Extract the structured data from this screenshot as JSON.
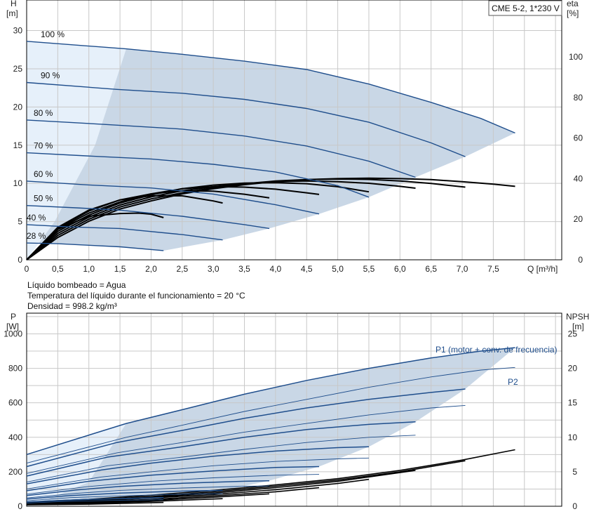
{
  "model_label": "CME 5-2, 1*230 V",
  "info_lines": [
    "Líquido bombeado = Agua",
    "Temperatura del líquido durante el funcionamiento = 20 °C",
    "Densidad = 998.2 kg/m³"
  ],
  "colors": {
    "pump_curve": "#1f4e8c",
    "efficiency_curve": "#000000",
    "operating_area": "#c9d7e6",
    "low_flow_area": "#e6f0fa",
    "grid": "#c8c8c8",
    "axis": "#000000"
  },
  "chart_data": [
    {
      "type": "line",
      "title": "",
      "x_unit": "Q [m³/h]",
      "y_left_label": "H",
      "y_left_unit": "[m]",
      "y_right_label": "eta",
      "y_right_unit": "[%]",
      "x_ticks": [
        "0",
        "0,5",
        "1,0",
        "1,5",
        "2,0",
        "2,5",
        "3,0",
        "3,5",
        "4,0",
        "4,5",
        "5,0",
        "5,5",
        "6,0",
        "6,5",
        "7,0",
        "7,5"
      ],
      "y_left_ticks": [
        "0",
        "5",
        "10",
        "15",
        "20",
        "25",
        "30"
      ],
      "y_right_ticks": [
        "0",
        "20",
        "40",
        "60",
        "80",
        "100"
      ],
      "xlim": [
        0,
        8.6
      ],
      "ylim_left": [
        0,
        34
      ],
      "ylim_right": [
        0,
        128
      ],
      "grid": true,
      "head_curves": [
        {
          "label": "100 %",
          "x": [
            0,
            1.6,
            2.5,
            3.5,
            4.5,
            5.5,
            6.5,
            7.3,
            7.85
          ],
          "y": [
            28.6,
            27.6,
            26.9,
            26.0,
            24.9,
            23.0,
            20.6,
            18.5,
            16.6
          ]
        },
        {
          "label": "90 %",
          "x": [
            0,
            1.45,
            2.5,
            3.5,
            4.5,
            5.5,
            6.5,
            7.05
          ],
          "y": [
            23.2,
            22.3,
            21.8,
            21.0,
            19.8,
            18.0,
            15.3,
            13.5
          ]
        },
        {
          "label": "80 %",
          "x": [
            0,
            1.3,
            2.5,
            3.5,
            4.5,
            5.5,
            6.25
          ],
          "y": [
            18.3,
            17.7,
            17.1,
            16.2,
            14.9,
            12.9,
            10.8
          ]
        },
        {
          "label": "70 %",
          "x": [
            0,
            1.2,
            2.0,
            3.0,
            4.0,
            5.0,
            5.5
          ],
          "y": [
            14.0,
            13.5,
            13.2,
            12.5,
            11.5,
            9.7,
            8.2
          ]
        },
        {
          "label": "60 %",
          "x": [
            0,
            1.0,
            2.0,
            3.0,
            4.0,
            4.7
          ],
          "y": [
            10.3,
            9.8,
            9.4,
            8.6,
            7.2,
            6.0
          ]
        },
        {
          "label": "50 %",
          "x": [
            0,
            0.8,
            1.5,
            2.5,
            3.5,
            3.9
          ],
          "y": [
            7.1,
            6.8,
            6.5,
            5.7,
            4.6,
            4.1
          ]
        },
        {
          "label": "40 %",
          "x": [
            0,
            0.7,
            1.5,
            2.5,
            3.15
          ],
          "y": [
            4.6,
            4.3,
            4.1,
            3.3,
            2.6
          ]
        },
        {
          "label": "28 %",
          "x": [
            0,
            0.5,
            1.0,
            1.5,
            2.2
          ],
          "y": [
            2.2,
            2.1,
            1.9,
            1.7,
            1.2
          ]
        }
      ],
      "efficiency_curves": [
        {
          "x": [
            0,
            0.5,
            1.0,
            1.5,
            2.0,
            2.5,
            3.0,
            3.5,
            4.0,
            4.5,
            5.0,
            5.5,
            6.0,
            6.5,
            7.0,
            7.5,
            7.85
          ],
          "y": [
            0,
            11,
            19,
            25,
            29,
            32.5,
            35,
            37,
            38.5,
            39.5,
            40,
            40.2,
            40,
            39.5,
            38.5,
            37.3,
            36.2
          ]
        },
        {
          "x": [
            0,
            0.5,
            1.0,
            1.5,
            2.0,
            2.5,
            3.0,
            3.5,
            4.0,
            4.5,
            5.0,
            5.5,
            6.0,
            6.5,
            7.05
          ],
          "y": [
            0,
            12,
            20,
            26,
            30,
            33,
            35.5,
            37.5,
            38.8,
            39.5,
            39.8,
            39.6,
            38.8,
            37.6,
            35.8
          ]
        },
        {
          "x": [
            0,
            0.5,
            1.0,
            1.5,
            2.0,
            2.5,
            3.0,
            3.5,
            4.0,
            4.5,
            5.0,
            5.5,
            6.0,
            6.25
          ],
          "y": [
            0,
            13,
            21,
            27,
            31,
            34,
            36,
            37.5,
            38.5,
            38.8,
            38.5,
            37.7,
            36.2,
            35.3
          ]
        },
        {
          "x": [
            0,
            0.5,
            1.0,
            1.5,
            2.0,
            2.5,
            3.0,
            3.5,
            4.0,
            4.5,
            5.0,
            5.5
          ],
          "y": [
            0,
            14,
            22,
            28,
            32,
            35,
            36.8,
            37.8,
            38,
            37.5,
            36,
            33.5
          ]
        },
        {
          "x": [
            0,
            0.5,
            1.0,
            1.5,
            2.0,
            2.5,
            3.0,
            3.5,
            4.0,
            4.5,
            4.7
          ],
          "y": [
            0,
            15,
            23,
            28.5,
            32.5,
            35,
            36,
            35.8,
            34.8,
            33,
            32.2
          ]
        },
        {
          "x": [
            0,
            0.5,
            1.0,
            1.5,
            2.0,
            2.5,
            3.0,
            3.5,
            3.9
          ],
          "y": [
            0,
            15.5,
            24,
            29.5,
            32.5,
            34,
            33.8,
            32.3,
            30.5
          ]
        },
        {
          "x": [
            0,
            0.5,
            1.0,
            1.5,
            2.0,
            2.5,
            3.0,
            3.15
          ],
          "y": [
            0,
            16,
            24.5,
            29.5,
            31.5,
            31.5,
            29,
            28
          ]
        },
        {
          "x": [
            0,
            0.5,
            1.0,
            1.5,
            1.8,
            2.0,
            2.2
          ],
          "y": [
            0,
            15,
            21.5,
            22.8,
            23,
            22.5,
            20.8
          ]
        }
      ]
    },
    {
      "type": "line",
      "title": "",
      "x_unit": "Q [m³/h]",
      "y_left_label": "P",
      "y_left_unit": "[W]",
      "y_right_label": "NPSH",
      "y_right_unit": "[m]",
      "y_left_ticks": [
        "0",
        "200",
        "400",
        "600",
        "800",
        "1000"
      ],
      "y_right_ticks": [
        "0",
        "5",
        "10",
        "15",
        "20",
        "25"
      ],
      "xlim": [
        0,
        8.6
      ],
      "ylim_left": [
        0,
        1120
      ],
      "ylim_right": [
        0,
        28
      ],
      "grid": true,
      "series_labels": {
        "p1": "P1 (motor + conv. de frecuencia)",
        "p2": "P2"
      },
      "p1_curves": [
        {
          "x": [
            0,
            1.6,
            2.5,
            3.5,
            4.5,
            5.5,
            6.5,
            7.3,
            7.85
          ],
          "y": [
            300,
            480,
            560,
            650,
            730,
            800,
            860,
            900,
            920
          ]
        },
        {
          "x": [
            0,
            1.45,
            2.5,
            3.5,
            4.5,
            5.5,
            6.5,
            7.05
          ],
          "y": [
            230,
            370,
            440,
            510,
            570,
            620,
            660,
            680
          ]
        },
        {
          "x": [
            0,
            1.3,
            2.5,
            3.5,
            4.5,
            5.5,
            6.25
          ],
          "y": [
            175,
            285,
            345,
            400,
            445,
            475,
            490
          ]
        },
        {
          "x": [
            0,
            1.2,
            2.0,
            3.0,
            4.0,
            5.0,
            5.5
          ],
          "y": [
            130,
            210,
            250,
            290,
            320,
            340,
            345
          ]
        },
        {
          "x": [
            0,
            1.0,
            2.0,
            3.0,
            4.0,
            4.7
          ],
          "y": [
            90,
            145,
            180,
            205,
            225,
            230
          ]
        },
        {
          "x": [
            0,
            0.8,
            1.5,
            2.5,
            3.5,
            3.9
          ],
          "y": [
            62,
            95,
            115,
            133,
            145,
            148
          ]
        },
        {
          "x": [
            0,
            0.7,
            1.5,
            2.5,
            3.15
          ],
          "y": [
            42,
            62,
            76,
            88,
            92
          ]
        },
        {
          "x": [
            0,
            0.5,
            1.0,
            1.5,
            2.2
          ],
          "y": [
            25,
            33,
            40,
            45,
            50
          ]
        }
      ],
      "p2_curves": [
        {
          "x": [
            0,
            1.6,
            2.5,
            3.5,
            4.5,
            5.5,
            6.5,
            7.3,
            7.85
          ],
          "y": [
            250,
            400,
            470,
            550,
            620,
            690,
            750,
            790,
            805
          ]
        },
        {
          "x": [
            0,
            1.45,
            2.5,
            3.5,
            4.5,
            5.5,
            6.5,
            7.05
          ],
          "y": [
            190,
            310,
            370,
            430,
            480,
            530,
            570,
            585
          ]
        },
        {
          "x": [
            0,
            1.3,
            2.5,
            3.5,
            4.5,
            5.5,
            6.25
          ],
          "y": [
            140,
            235,
            285,
            330,
            370,
            400,
            412
          ]
        },
        {
          "x": [
            0,
            1.2,
            2.0,
            3.0,
            4.0,
            5.0,
            5.5
          ],
          "y": [
            100,
            170,
            200,
            235,
            260,
            275,
            280
          ]
        },
        {
          "x": [
            0,
            1.0,
            2.0,
            3.0,
            4.0,
            4.7
          ],
          "y": [
            70,
            115,
            145,
            165,
            180,
            185
          ]
        },
        {
          "x": [
            0,
            0.8,
            1.5,
            2.5,
            3.5,
            3.9
          ],
          "y": [
            48,
            75,
            92,
            106,
            116,
            118
          ]
        },
        {
          "x": [
            0,
            0.7,
            1.5,
            2.5,
            3.15
          ],
          "y": [
            32,
            50,
            60,
            70,
            73
          ]
        },
        {
          "x": [
            0,
            0.5,
            1.0,
            1.5,
            2.2
          ],
          "y": [
            18,
            26,
            31,
            35,
            38
          ]
        }
      ],
      "npsh_curves": [
        {
          "x": [
            0,
            1.0,
            2.0,
            3.0,
            4.0,
            5.0,
            6.0,
            7.0,
            7.85
          ],
          "y": [
            0.6,
            1.0,
            1.6,
            2.3,
            3.1,
            4.0,
            5.2,
            6.7,
            8.2
          ]
        },
        {
          "x": [
            0,
            1.0,
            2.0,
            3.0,
            4.0,
            5.0,
            6.0,
            7.05
          ],
          "y": [
            0.5,
            0.9,
            1.4,
            2.1,
            2.9,
            3.8,
            5.0,
            6.6
          ]
        },
        {
          "x": [
            0,
            1.0,
            2.0,
            3.0,
            4.0,
            5.0,
            6.25
          ],
          "y": [
            0.45,
            0.8,
            1.3,
            1.9,
            2.7,
            3.6,
            5.2
          ]
        },
        {
          "x": [
            0,
            1.0,
            2.0,
            3.0,
            4.0,
            5.0,
            5.5
          ],
          "y": [
            0.4,
            0.7,
            1.2,
            1.7,
            2.4,
            3.3,
            3.9
          ]
        },
        {
          "x": [
            0,
            1.0,
            2.0,
            3.0,
            4.0,
            4.7
          ],
          "y": [
            0.35,
            0.6,
            1.0,
            1.5,
            2.1,
            2.7
          ]
        },
        {
          "x": [
            0,
            1.0,
            2.0,
            3.0,
            3.9
          ],
          "y": [
            0.3,
            0.5,
            0.85,
            1.3,
            1.8
          ]
        },
        {
          "x": [
            0,
            1.0,
            2.0,
            3.15
          ],
          "y": [
            0.25,
            0.4,
            0.7,
            1.1
          ]
        },
        {
          "x": [
            0,
            1.0,
            2.2
          ],
          "y": [
            0.2,
            0.3,
            0.55
          ]
        }
      ]
    }
  ]
}
